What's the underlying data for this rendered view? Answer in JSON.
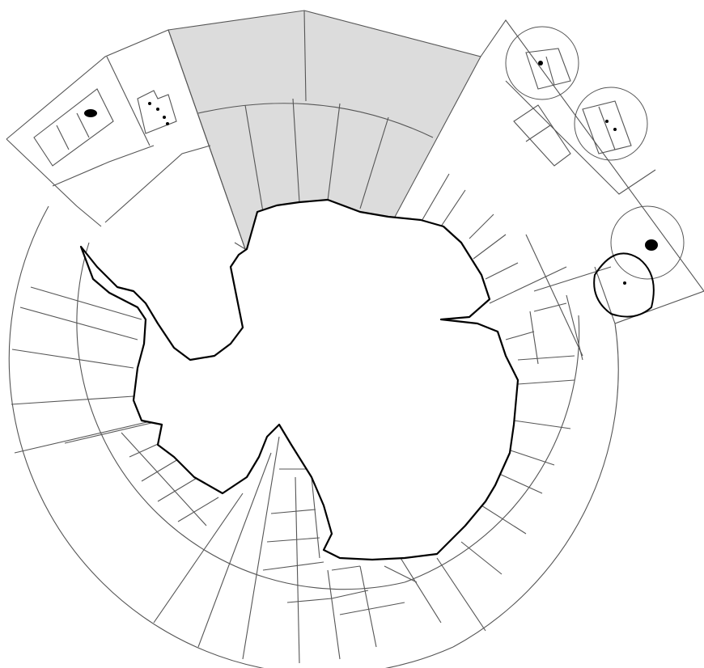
{
  "map": {
    "feature": "antarctica-coastline",
    "colors": {
      "background": "#ffffff",
      "grid_line": "#555555",
      "coastline": "#000000",
      "shaded_sectors": "#dcdcdc",
      "islands": "#000000"
    }
  }
}
